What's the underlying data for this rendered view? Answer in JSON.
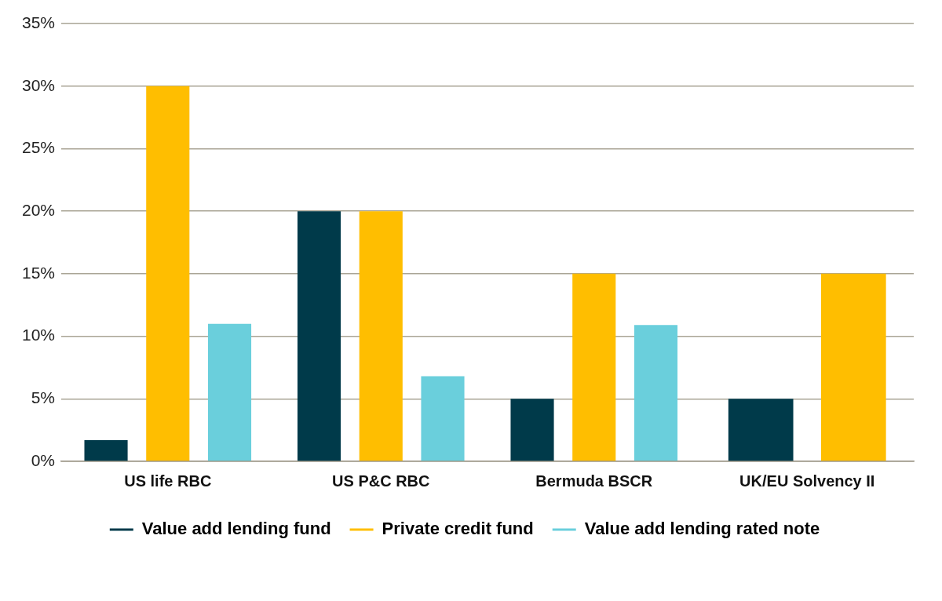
{
  "chart_data": {
    "type": "bar",
    "categories": [
      "US life RBC",
      "US P&C RBC",
      "Bermuda BSCR",
      "UK/EU Solvency II"
    ],
    "series": [
      {
        "name": "Value add lending fund",
        "color": "#003a4a",
        "values": [
          1.7,
          20,
          5,
          5
        ]
      },
      {
        "name": "Private credit fund",
        "color": "#ffbe00",
        "values": [
          30,
          20,
          15,
          15
        ]
      },
      {
        "name": "Value add lending rated note",
        "color": "#6acfdc",
        "values": [
          11,
          6.8,
          10.9,
          null
        ]
      }
    ],
    "ylim": [
      0,
      35
    ],
    "yticks": [
      {
        "value": 0,
        "label": "0%"
      },
      {
        "value": 5,
        "label": "5%"
      },
      {
        "value": 10,
        "label": "10%"
      },
      {
        "value": 15,
        "label": "15%"
      },
      {
        "value": 20,
        "label": "20%"
      },
      {
        "value": 25,
        "label": "25%"
      },
      {
        "value": 30,
        "label": "30%"
      },
      {
        "value": 35,
        "label": "35%"
      }
    ],
    "grid": "y",
    "legend": "bottom"
  }
}
